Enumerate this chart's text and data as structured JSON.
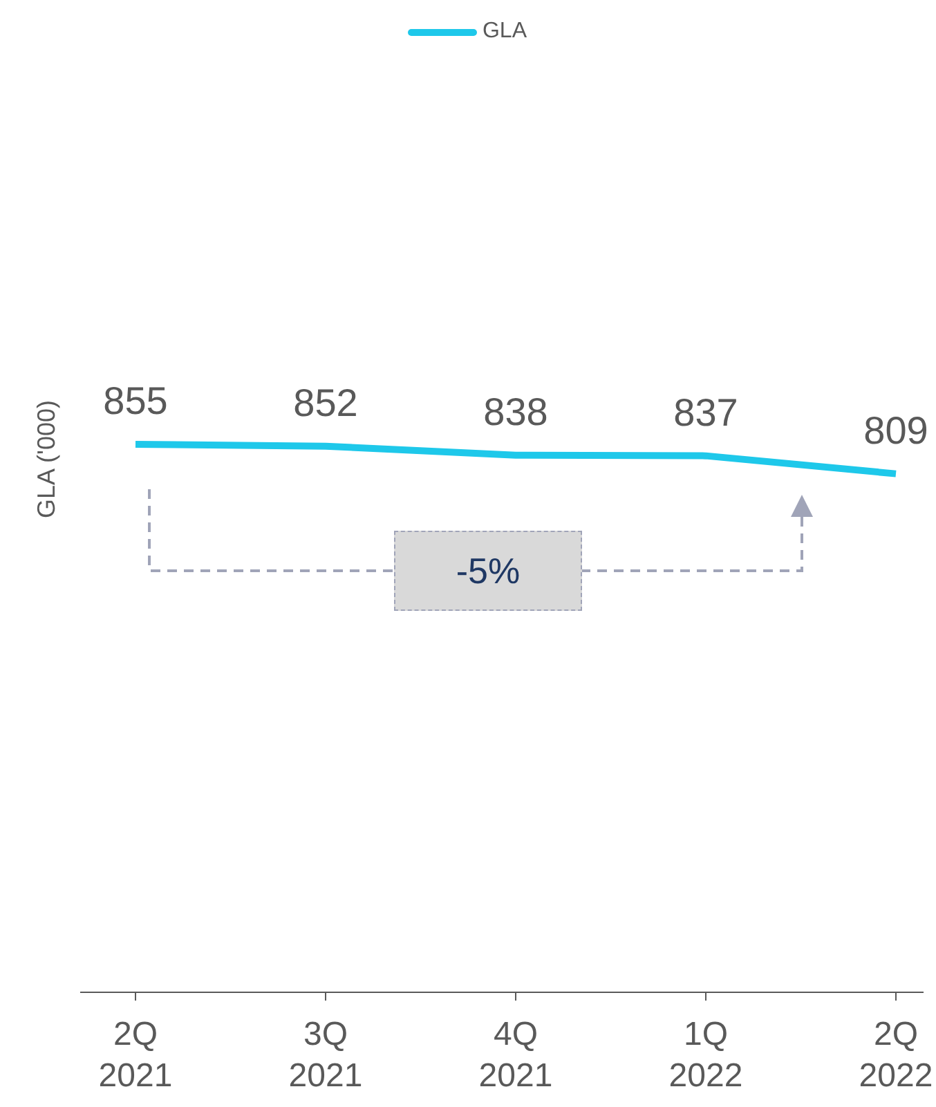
{
  "chart_data": {
    "type": "line",
    "ylabel": "GLA ('000)",
    "categories": [
      "2Q\n2021",
      "3Q\n2021",
      "4Q\n2021",
      "1Q\n2022",
      "2Q\n2022"
    ],
    "series": [
      {
        "name": "GLA",
        "color": "#1ec8ea",
        "values": [
          855,
          852,
          838,
          837,
          809
        ]
      }
    ],
    "data_labels": true,
    "legend": "top",
    "marker": "none",
    "tick_labels": "x",
    "annotations": [
      "-5%"
    ]
  }
}
